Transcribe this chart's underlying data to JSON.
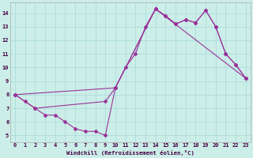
{
  "xlabel": "Windchill (Refroidissement éolien,°C)",
  "bg_color": "#cceee8",
  "grid_color": "#aadddd",
  "line_color": "#993399",
  "xlim": [
    -0.5,
    23.5
  ],
  "ylim": [
    4.5,
    14.8
  ],
  "xticks": [
    0,
    1,
    2,
    3,
    4,
    5,
    6,
    7,
    8,
    9,
    10,
    11,
    12,
    13,
    14,
    15,
    16,
    17,
    18,
    19,
    20,
    21,
    22,
    23
  ],
  "yticks": [
    5,
    6,
    7,
    8,
    9,
    10,
    11,
    12,
    13,
    14
  ],
  "line1_x": [
    0,
    1,
    2,
    3,
    4,
    5,
    6,
    7,
    8,
    9,
    10,
    11,
    12,
    13,
    14,
    15,
    16,
    17,
    18,
    19,
    20,
    21,
    22,
    23
  ],
  "line1_y": [
    8.0,
    7.5,
    7.0,
    6.5,
    6.5,
    6.0,
    5.5,
    5.3,
    5.3,
    5.0,
    8.5,
    10.0,
    11.0,
    13.0,
    14.3,
    13.8,
    13.2,
    13.5,
    13.3,
    14.2,
    13.0,
    11.0,
    10.2,
    9.2
  ],
  "line2_x": [
    0,
    2,
    9,
    10,
    14,
    23
  ],
  "line2_y": [
    8.0,
    7.0,
    7.5,
    8.5,
    14.3,
    9.2
  ],
  "line3_x": [
    0,
    10,
    14,
    15,
    16,
    17,
    18,
    19,
    20,
    21,
    22,
    23
  ],
  "line3_y": [
    8.0,
    8.5,
    14.3,
    13.8,
    13.2,
    13.5,
    13.3,
    14.2,
    13.0,
    11.0,
    10.2,
    9.2
  ]
}
